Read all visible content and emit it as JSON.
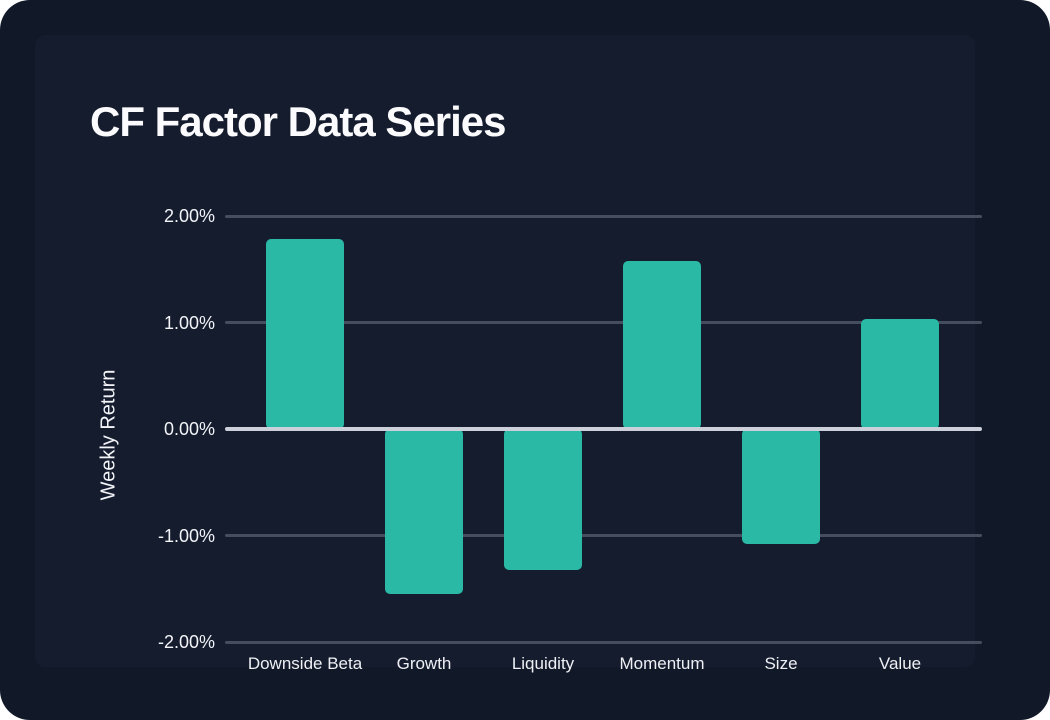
{
  "title": "CF Factor Data Series",
  "chart_data": {
    "type": "bar",
    "title": "CF Factor Data Series",
    "xlabel": "",
    "ylabel": "Weekly Return",
    "categories": [
      "Downside Beta",
      "Growth",
      "Liquidity",
      "Momentum",
      "Size",
      "Value"
    ],
    "values": [
      1.78,
      -1.55,
      -1.32,
      1.58,
      -1.08,
      1.03
    ],
    "value_unit": "percent",
    "ylim": [
      -2.0,
      2.0
    ],
    "yticks": [
      2.0,
      1.0,
      0.0,
      -1.0,
      -2.0
    ],
    "ytick_labels": [
      "2.00%",
      "1.00%",
      "0.00%",
      "-1.00%",
      "-2.00%"
    ],
    "grid": true,
    "legend": false
  },
  "colors": {
    "card_bg": "#111828",
    "panel_bg": "#151c2e",
    "gridline": "#454d5e",
    "zero_line": "#ccd0da",
    "bar": "#2ab9a5",
    "text": "#f2f4f7"
  }
}
